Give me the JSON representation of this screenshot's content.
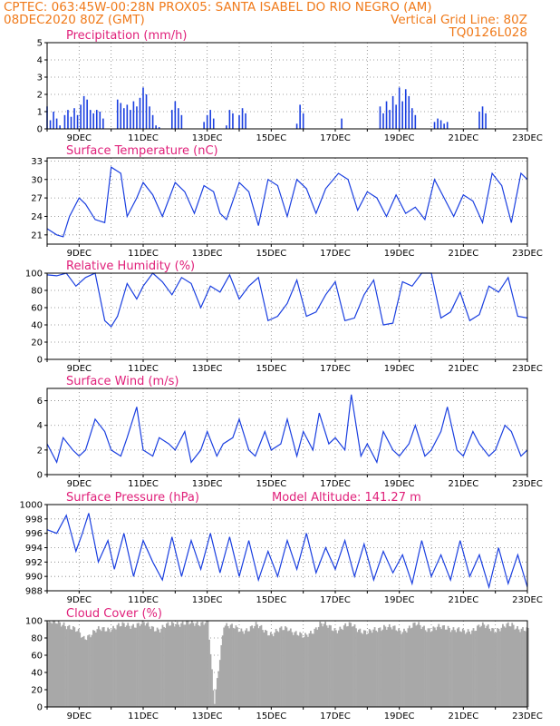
{
  "header": {
    "line1_left": "CPTEC:   063:45W-00:28N   PROX05: SANTA ISABEL DO RIO NEGRO (AM)",
    "line2_left": "08DEC2020 80Z (GMT)",
    "line2_right": "Vertical Grid Line: 80Z",
    "line3_right": "TQ0126L028"
  },
  "colors": {
    "header": "#f07a1a",
    "title": "#e0207a",
    "series": "#1a3fe0",
    "cloud": "#a8a8a8",
    "precip": "#1a3fe0"
  },
  "x_axis": {
    "date_labels": [
      "9DEC",
      "11DEC",
      "13DEC",
      "15DEC",
      "17DEC",
      "19DEC",
      "21DEC",
      "23DEC"
    ],
    "date_positions_days": [
      1,
      3,
      5,
      7,
      9,
      11,
      13,
      15
    ],
    "span_days": 15.0
  },
  "chart_data": [
    {
      "id": "precip",
      "type": "bar",
      "title": "Precipitation (mm/h)",
      "ylim": [
        0,
        5
      ],
      "yticks": [
        0,
        1,
        2,
        3,
        4,
        5
      ],
      "x": [
        0.0,
        0.1,
        0.2,
        0.3,
        0.4,
        0.55,
        0.65,
        0.75,
        0.85,
        0.95,
        1.05,
        1.15,
        1.25,
        1.35,
        1.45,
        1.55,
        1.65,
        1.75,
        2.2,
        2.3,
        2.4,
        2.5,
        2.6,
        2.7,
        2.8,
        2.9,
        3.0,
        3.1,
        3.2,
        3.3,
        3.4,
        3.5,
        3.9,
        4.0,
        4.1,
        4.2,
        4.9,
        5.0,
        5.1,
        5.2,
        5.6,
        5.7,
        5.8,
        6.0,
        6.1,
        6.2,
        7.8,
        7.9,
        8.0,
        9.2,
        10.4,
        10.5,
        10.6,
        10.7,
        10.8,
        10.9,
        11.0,
        11.1,
        11.2,
        11.3,
        11.4,
        11.5,
        12.1,
        12.2,
        12.3,
        12.4,
        12.5,
        13.5,
        13.6,
        13.7
      ],
      "values": [
        1.3,
        0.5,
        1.0,
        0.6,
        0.2,
        0.8,
        1.1,
        0.7,
        1.2,
        0.8,
        1.4,
        1.9,
        1.7,
        1.1,
        0.9,
        1.1,
        1.0,
        0.6,
        1.7,
        1.5,
        1.2,
        1.4,
        1.1,
        1.6,
        1.3,
        1.8,
        2.4,
        2.0,
        1.3,
        0.8,
        0.2,
        0.1,
        1.1,
        1.6,
        1.2,
        0.8,
        0.4,
        0.8,
        1.1,
        0.6,
        0.2,
        1.1,
        0.9,
        0.8,
        1.2,
        0.9,
        0.3,
        1.4,
        0.9,
        0.6,
        1.3,
        0.9,
        1.6,
        1.1,
        1.9,
        1.4,
        2.4,
        1.6,
        2.3,
        1.9,
        1.2,
        0.8,
        0.4,
        0.6,
        0.5,
        0.3,
        0.4,
        1.0,
        1.3,
        0.9
      ]
    },
    {
      "id": "temp",
      "type": "line",
      "title": "Surface Temperature (nC)",
      "ylim": [
        19.5,
        33.5
      ],
      "yticks": [
        21,
        24,
        27,
        30,
        33
      ],
      "x": [
        0.0,
        0.3,
        0.5,
        0.7,
        1.0,
        1.2,
        1.5,
        1.8,
        2.0,
        2.3,
        2.5,
        2.8,
        3.0,
        3.3,
        3.6,
        4.0,
        4.3,
        4.6,
        4.9,
        5.2,
        5.4,
        5.6,
        6.0,
        6.3,
        6.6,
        6.9,
        7.2,
        7.5,
        7.8,
        8.1,
        8.4,
        8.7,
        9.1,
        9.4,
        9.7,
        10.0,
        10.3,
        10.6,
        10.9,
        11.2,
        11.5,
        11.8,
        12.1,
        12.4,
        12.7,
        13.0,
        13.3,
        13.6,
        13.9,
        14.2,
        14.5,
        14.8,
        15.0
      ],
      "values": [
        22.0,
        21.0,
        20.7,
        24.0,
        27.0,
        26.0,
        23.5,
        23.0,
        32.0,
        31.0,
        24.0,
        27.0,
        29.5,
        27.5,
        24.0,
        29.5,
        28.0,
        24.5,
        29.0,
        28.0,
        24.5,
        23.5,
        29.5,
        28.0,
        22.5,
        30.0,
        29.0,
        24.0,
        30.0,
        28.5,
        24.5,
        28.5,
        31.0,
        30.0,
        25.0,
        28.0,
        27.0,
        24.0,
        27.5,
        24.5,
        25.5,
        23.5,
        30.0,
        27.0,
        24.0,
        27.5,
        26.5,
        23.0,
        31.0,
        29.0,
        23.0,
        31.0,
        30.0
      ]
    },
    {
      "id": "rh",
      "type": "line",
      "title": "Relative Humidity (%)",
      "ylim": [
        0,
        100
      ],
      "yticks": [
        0,
        20,
        40,
        60,
        80,
        100
      ],
      "x": [
        0.0,
        0.3,
        0.6,
        0.9,
        1.2,
        1.5,
        1.8,
        2.0,
        2.2,
        2.5,
        2.8,
        3.0,
        3.3,
        3.6,
        3.9,
        4.2,
        4.5,
        4.8,
        5.1,
        5.4,
        5.7,
        6.0,
        6.3,
        6.6,
        6.9,
        7.2,
        7.5,
        7.8,
        8.1,
        8.4,
        8.7,
        9.0,
        9.3,
        9.6,
        9.9,
        10.2,
        10.5,
        10.8,
        11.1,
        11.4,
        11.7,
        12.0,
        12.3,
        12.6,
        12.9,
        13.2,
        13.5,
        13.8,
        14.1,
        14.4,
        14.7,
        15.0
      ],
      "values": [
        98,
        97,
        100,
        85,
        95,
        100,
        45,
        38,
        50,
        88,
        70,
        85,
        100,
        90,
        75,
        95,
        88,
        60,
        85,
        78,
        98,
        70,
        85,
        95,
        45,
        50,
        65,
        92,
        50,
        55,
        75,
        90,
        45,
        48,
        75,
        92,
        40,
        42,
        90,
        85,
        100,
        100,
        48,
        55,
        78,
        45,
        52,
        85,
        78,
        95,
        50,
        48
      ]
    },
    {
      "id": "wind",
      "type": "line",
      "title": "Surface Wind (m/s)",
      "ylim": [
        0,
        7
      ],
      "yticks": [
        0,
        2,
        4,
        6
      ],
      "x": [
        0.0,
        0.3,
        0.5,
        0.8,
        1.0,
        1.2,
        1.5,
        1.8,
        2.0,
        2.3,
        2.5,
        2.8,
        3.0,
        3.3,
        3.5,
        3.8,
        4.0,
        4.3,
        4.5,
        4.8,
        5.0,
        5.3,
        5.5,
        5.8,
        6.0,
        6.3,
        6.5,
        6.8,
        7.0,
        7.3,
        7.5,
        7.8,
        8.0,
        8.3,
        8.5,
        8.8,
        9.0,
        9.3,
        9.5,
        9.8,
        10.0,
        10.3,
        10.5,
        10.8,
        11.0,
        11.3,
        11.5,
        11.8,
        12.0,
        12.3,
        12.5,
        12.8,
        13.0,
        13.3,
        13.5,
        13.8,
        14.0,
        14.3,
        14.5,
        14.8,
        15.0
      ],
      "values": [
        2.5,
        1.0,
        3.0,
        2.0,
        1.5,
        2.0,
        4.5,
        3.5,
        2.0,
        1.5,
        3.0,
        5.5,
        2.0,
        1.5,
        3.0,
        2.5,
        2.0,
        3.5,
        1.0,
        2.0,
        3.5,
        1.5,
        2.5,
        3.0,
        4.5,
        2.0,
        1.5,
        3.5,
        2.0,
        2.5,
        4.5,
        1.5,
        3.5,
        2.0,
        5.0,
        2.5,
        3.0,
        2.0,
        6.5,
        1.5,
        2.5,
        1.0,
        3.5,
        2.0,
        1.5,
        2.5,
        4.0,
        1.5,
        2.0,
        3.5,
        5.5,
        2.0,
        1.5,
        3.5,
        2.5,
        1.5,
        2.0,
        4.0,
        3.5,
        1.5,
        2.0
      ]
    },
    {
      "id": "pres",
      "type": "line",
      "title": "Surface Pressure (hPa)",
      "annotation": "Model Altitude: 141.27 m",
      "ylim": [
        988,
        1000
      ],
      "yticks": [
        988,
        990,
        992,
        994,
        996,
        998,
        1000
      ],
      "x": [
        0.0,
        0.3,
        0.6,
        0.9,
        1.1,
        1.3,
        1.6,
        1.9,
        2.1,
        2.4,
        2.7,
        3.0,
        3.3,
        3.6,
        3.9,
        4.2,
        4.5,
        4.8,
        5.1,
        5.4,
        5.7,
        6.0,
        6.3,
        6.6,
        6.9,
        7.2,
        7.5,
        7.8,
        8.1,
        8.4,
        8.7,
        9.0,
        9.3,
        9.6,
        9.9,
        10.2,
        10.5,
        10.8,
        11.1,
        11.4,
        11.7,
        12.0,
        12.3,
        12.6,
        12.9,
        13.2,
        13.5,
        13.8,
        14.1,
        14.4,
        14.7,
        15.0
      ],
      "values": [
        996.5,
        996.0,
        998.5,
        993.5,
        996.0,
        998.8,
        992.0,
        995.0,
        991.0,
        996.0,
        990.0,
        995.0,
        992.0,
        989.5,
        995.5,
        990.0,
        995.0,
        991.0,
        996.0,
        990.5,
        995.5,
        990.0,
        995.0,
        989.5,
        993.5,
        990.0,
        995.0,
        991.0,
        996.0,
        990.5,
        994.0,
        991.0,
        995.0,
        990.0,
        994.5,
        989.5,
        993.5,
        990.5,
        993.0,
        989.0,
        995.0,
        990.0,
        993.0,
        989.5,
        995.0,
        990.0,
        993.0,
        988.5,
        994.0,
        989.0,
        993.0,
        988.5
      ]
    },
    {
      "id": "cloud",
      "type": "area",
      "title": "Cloud Cover (%)",
      "ylim": [
        0,
        100
      ],
      "yticks": [
        0,
        20,
        40,
        60,
        80,
        100
      ],
      "x": [
        0.0,
        0.5,
        1.0,
        1.1,
        1.5,
        2.0,
        2.5,
        3.0,
        3.5,
        4.0,
        4.5,
        5.0,
        5.2,
        5.5,
        6.0,
        6.5,
        7.0,
        7.5,
        8.0,
        8.5,
        9.0,
        9.5,
        10.0,
        10.5,
        11.0,
        11.5,
        12.0,
        12.5,
        13.0,
        13.5,
        14.0,
        14.5,
        15.0
      ],
      "values": [
        98,
        97,
        85,
        80,
        88,
        92,
        95,
        96,
        90,
        98,
        96,
        100,
        2,
        97,
        88,
        94,
        85,
        92,
        80,
        96,
        90,
        95,
        85,
        94,
        88,
        95,
        90,
        93,
        86,
        94,
        90,
        95,
        88
      ]
    }
  ]
}
